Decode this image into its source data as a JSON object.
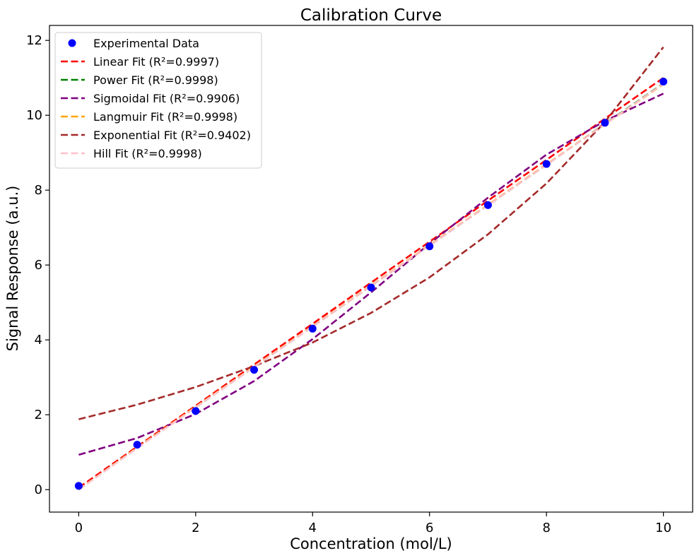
{
  "chart_data": {
    "type": "scatter",
    "title": "Calibration Curve",
    "xlabel": "Concentration (mol/L)",
    "ylabel": "Signal Response (a.u.)",
    "xlim": [
      -0.5,
      10.5
    ],
    "ylim": [
      -0.6,
      12.4
    ],
    "xticks": [
      0,
      2,
      4,
      6,
      8,
      10
    ],
    "yticks": [
      0,
      2,
      4,
      6,
      8,
      10,
      12
    ],
    "grid": false,
    "legend_position": "top-left",
    "points": {
      "name": "Experimental Data",
      "color": "#0000ff",
      "x": [
        0,
        1,
        2,
        3,
        4,
        5,
        6,
        7,
        8,
        9,
        10
      ],
      "y": [
        0.1,
        1.2,
        2.1,
        3.2,
        4.3,
        5.4,
        6.5,
        7.6,
        8.7,
        9.8,
        10.9
      ]
    },
    "series": [
      {
        "name": "Linear Fit (R²=0.9997)",
        "color": "#ff0000",
        "x": [
          0,
          1,
          2,
          3,
          4,
          5,
          6,
          7,
          8,
          9,
          10
        ],
        "y": [
          0.05,
          1.15,
          2.24,
          3.34,
          4.43,
          5.53,
          6.62,
          7.72,
          8.81,
          9.91,
          11.0
        ]
      },
      {
        "name": "Power Fit (R²=0.9998)",
        "color": "#008000",
        "x": [
          0,
          1,
          2,
          3,
          4,
          5,
          6,
          7,
          8,
          9,
          10
        ],
        "y": [
          0.0,
          1.12,
          2.2,
          3.28,
          4.36,
          5.44,
          6.52,
          7.6,
          8.68,
          9.77,
          10.85
        ]
      },
      {
        "name": "Sigmoidal Fit (R²=0.9906)",
        "color": "#800080",
        "x": [
          0,
          1,
          2,
          3,
          4,
          5,
          6,
          7,
          8,
          9,
          10
        ],
        "y": [
          0.93,
          1.38,
          2.02,
          2.9,
          4.02,
          5.27,
          6.57,
          7.8,
          8.95,
          9.85,
          10.58
        ]
      },
      {
        "name": "Langmuir Fit (R²=0.9998)",
        "color": "#ffa500",
        "x": [
          0,
          1,
          2,
          3,
          4,
          5,
          6,
          7,
          8,
          9,
          10
        ],
        "y": [
          0.0,
          1.12,
          2.21,
          3.29,
          4.37,
          5.45,
          6.53,
          7.61,
          8.69,
          9.76,
          10.83
        ]
      },
      {
        "name": "Exponential Fit (R²=0.9402)",
        "color": "#a52a2a",
        "x": [
          0,
          1,
          2,
          3,
          4,
          5,
          6,
          7,
          8,
          9,
          10
        ],
        "y": [
          1.88,
          2.27,
          2.74,
          3.3,
          3.93,
          4.72,
          5.67,
          6.82,
          8.18,
          9.82,
          11.82
        ]
      },
      {
        "name": "Hill Fit (R²=0.9998)",
        "color": "#ffc0cb",
        "x": [
          0,
          1,
          2,
          3,
          4,
          5,
          6,
          7,
          8,
          9,
          10
        ],
        "y": [
          0.0,
          1.11,
          2.2,
          3.28,
          4.36,
          5.44,
          6.52,
          7.6,
          8.68,
          9.76,
          10.84
        ]
      }
    ]
  }
}
